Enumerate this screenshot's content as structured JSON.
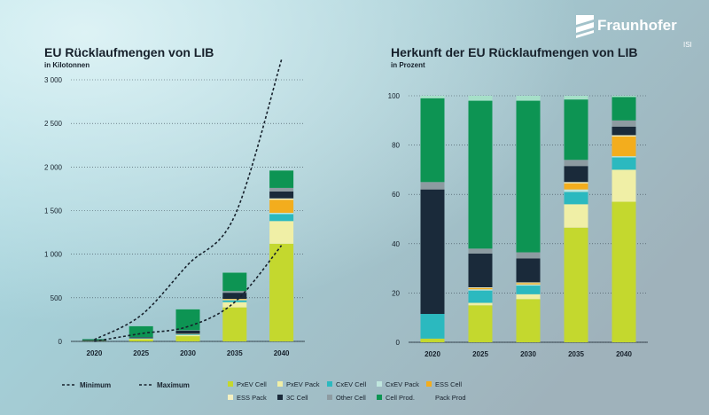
{
  "colors": {
    "pxev_cell": "#c4d82e",
    "pxev_pack": "#f0efa6",
    "cxev_cell": "#2bb9bf",
    "cxev_pack": "#bfe6dd",
    "ess_cell": "#f3ad1d",
    "ess_pack": "#f5f1c2",
    "c3_cell": "#1a2a3a",
    "other_cell": "#8d9ba1",
    "cell_prod": "#0d9453",
    "pack_prod": "#a6e0c8",
    "dash_line": "#16202b"
  },
  "logo": {
    "name": "Fraunhofer",
    "sub": "ISI"
  },
  "chart_data": [
    {
      "type": "bar",
      "stacked": true,
      "title": "EU Rücklaufmengen von LIB",
      "subtitle": "in Kilotonnen",
      "categories": [
        "2020",
        "2025",
        "2030",
        "2035",
        "2040"
      ],
      "ylim": [
        0,
        3000
      ],
      "yticks": [
        0,
        500,
        1000,
        1500,
        2000,
        2500,
        3000
      ],
      "ytick_labels": [
        "0",
        "500",
        "1 000",
        "1 500",
        "2 000",
        "2 500",
        "3 000"
      ],
      "series": [
        {
          "name": "PxEV Cell",
          "values": [
            3,
            25,
            60,
            390,
            1120
          ]
        },
        {
          "name": "PxEV Pack",
          "values": [
            1,
            6,
            15,
            60,
            260
          ]
        },
        {
          "name": "CxEV Cell",
          "values": [
            1,
            4,
            8,
            20,
            80
          ]
        },
        {
          "name": "CxEV Pack",
          "values": [
            0,
            1,
            2,
            5,
            15
          ]
        },
        {
          "name": "ESS Cell",
          "values": [
            0,
            1,
            2,
            10,
            150
          ]
        },
        {
          "name": "ESS Pack",
          "values": [
            0,
            0,
            1,
            3,
            15
          ]
        },
        {
          "name": "3C Cell",
          "values": [
            10,
            10,
            35,
            70,
            80
          ]
        },
        {
          "name": "Other Cell",
          "values": [
            1,
            2,
            5,
            20,
            40
          ]
        },
        {
          "name": "Cell Prod.",
          "values": [
            10,
            125,
            240,
            210,
            200
          ]
        },
        {
          "name": "Pack Prod",
          "values": [
            0,
            1,
            2,
            2,
            2
          ]
        }
      ],
      "lines": [
        {
          "name": "Minimum",
          "values": [
            0,
            90,
            170,
            450,
            1100
          ]
        },
        {
          "name": "Maximum",
          "values": [
            20,
            300,
            880,
            1440,
            3230
          ]
        }
      ]
    },
    {
      "type": "bar",
      "stacked": true,
      "title": "Herkunft der EU Rücklaufmengen von LIB",
      "subtitle": "in Prozent",
      "categories": [
        "2020",
        "2025",
        "2030",
        "2035",
        "2040"
      ],
      "ylim": [
        0,
        100
      ],
      "yticks": [
        0,
        20,
        40,
        60,
        80,
        100
      ],
      "ytick_labels": [
        "0",
        "20",
        "40",
        "60",
        "80",
        "100"
      ],
      "series": [
        {
          "name": "PxEV Cell",
          "values": [
            1.5,
            15,
            17.5,
            46.5,
            57
          ]
        },
        {
          "name": "PxEV Pack",
          "values": [
            0,
            1,
            2,
            9.5,
            13
          ]
        },
        {
          "name": "CxEV Cell",
          "values": [
            10,
            5,
            3.5,
            5,
            5
          ]
        },
        {
          "name": "CxEV Pack",
          "values": [
            0,
            0.5,
            0.5,
            1,
            0.5
          ]
        },
        {
          "name": "ESS Cell",
          "values": [
            0,
            0.5,
            0.5,
            2.5,
            8
          ]
        },
        {
          "name": "ESS Pack",
          "values": [
            0,
            0.3,
            0.3,
            0.5,
            0.5
          ]
        },
        {
          "name": "3C Cell",
          "values": [
            50.5,
            13.7,
            9.7,
            6.5,
            3.5
          ]
        },
        {
          "name": "Other Cell",
          "values": [
            3,
            2,
            2.5,
            2.5,
            2.5
          ]
        },
        {
          "name": "Cell Prod.",
          "values": [
            34,
            60,
            61.5,
            24.5,
            9.5
          ]
        },
        {
          "name": "Pack Prod",
          "values": [
            1,
            2,
            2,
            1.5,
            0.5
          ]
        }
      ]
    }
  ],
  "legend": {
    "lines": [
      {
        "label": "Minimum"
      },
      {
        "label": "Maximum"
      }
    ],
    "items": [
      {
        "label": "PxEV Cell",
        "color": "#c4d82e"
      },
      {
        "label": "PxEV Pack",
        "color": "#f0efa6"
      },
      {
        "label": "CxEV Cell",
        "color": "#2bb9bf"
      },
      {
        "label": "CxEV Pack",
        "color": "#bfe6dd"
      },
      {
        "label": "ESS Cell",
        "color": "#f3ad1d"
      },
      {
        "label": "ESS Pack",
        "color": "#f5f1c2"
      },
      {
        "label": "3C Cell",
        "color": "#1a2a3a"
      },
      {
        "label": "Other Cell",
        "color": "#8d9ba1"
      },
      {
        "label": "Cell Prod.",
        "color": "#0d9453"
      },
      {
        "label": "Pack Prod",
        "color": ""
      }
    ]
  }
}
